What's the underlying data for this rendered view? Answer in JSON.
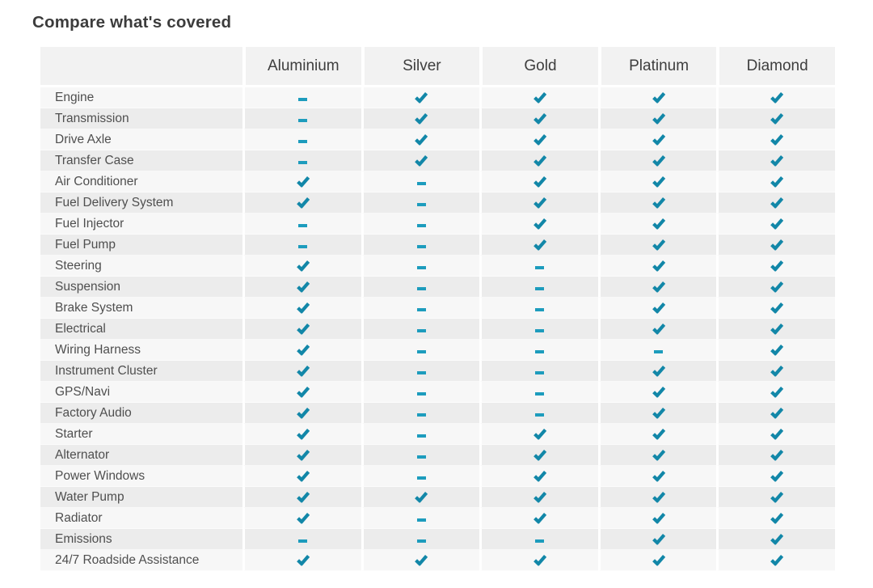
{
  "page": {
    "title": "Compare what's covered"
  },
  "colors": {
    "check": "#1287a8",
    "dash": "#1d9cbd",
    "header_bg": "#f2f2f2",
    "row_odd_bg": "#f7f7f7",
    "row_even_bg": "#ececec",
    "title_text": "#3c3c3c",
    "label_text": "#4f4f4f"
  },
  "icons": {
    "covered": "check-icon",
    "not_covered": "dash-icon"
  },
  "table": {
    "plans": [
      "Aluminium",
      "Silver",
      "Gold",
      "Platinum",
      "Diamond"
    ],
    "rows": [
      {
        "label": "Engine",
        "covered": [
          false,
          true,
          true,
          true,
          true
        ]
      },
      {
        "label": "Transmission",
        "covered": [
          false,
          true,
          true,
          true,
          true
        ]
      },
      {
        "label": "Drive Axle",
        "covered": [
          false,
          true,
          true,
          true,
          true
        ]
      },
      {
        "label": "Transfer Case",
        "covered": [
          false,
          true,
          true,
          true,
          true
        ]
      },
      {
        "label": "Air Conditioner",
        "covered": [
          true,
          false,
          true,
          true,
          true
        ]
      },
      {
        "label": "Fuel Delivery System",
        "covered": [
          true,
          false,
          true,
          true,
          true
        ]
      },
      {
        "label": "Fuel Injector",
        "covered": [
          false,
          false,
          true,
          true,
          true
        ]
      },
      {
        "label": "Fuel Pump",
        "covered": [
          false,
          false,
          true,
          true,
          true
        ]
      },
      {
        "label": "Steering",
        "covered": [
          true,
          false,
          false,
          true,
          true
        ]
      },
      {
        "label": "Suspension",
        "covered": [
          true,
          false,
          false,
          true,
          true
        ]
      },
      {
        "label": "Brake System",
        "covered": [
          true,
          false,
          false,
          true,
          true
        ]
      },
      {
        "label": "Electrical",
        "covered": [
          true,
          false,
          false,
          true,
          true
        ]
      },
      {
        "label": "Wiring Harness",
        "covered": [
          true,
          false,
          false,
          false,
          true
        ]
      },
      {
        "label": "Instrument Cluster",
        "covered": [
          true,
          false,
          false,
          true,
          true
        ]
      },
      {
        "label": "GPS/Navi",
        "covered": [
          true,
          false,
          false,
          true,
          true
        ]
      },
      {
        "label": "Factory Audio",
        "covered": [
          true,
          false,
          false,
          true,
          true
        ]
      },
      {
        "label": "Starter",
        "covered": [
          true,
          false,
          true,
          true,
          true
        ]
      },
      {
        "label": "Alternator",
        "covered": [
          true,
          false,
          true,
          true,
          true
        ]
      },
      {
        "label": "Power Windows",
        "covered": [
          true,
          false,
          true,
          true,
          true
        ]
      },
      {
        "label": "Water Pump",
        "covered": [
          true,
          true,
          true,
          true,
          true
        ]
      },
      {
        "label": "Radiator",
        "covered": [
          true,
          false,
          true,
          true,
          true
        ]
      },
      {
        "label": "Emissions",
        "covered": [
          false,
          false,
          false,
          true,
          true
        ]
      },
      {
        "label": "24/7 Roadside Assistance",
        "covered": [
          true,
          true,
          true,
          true,
          true
        ]
      }
    ]
  }
}
